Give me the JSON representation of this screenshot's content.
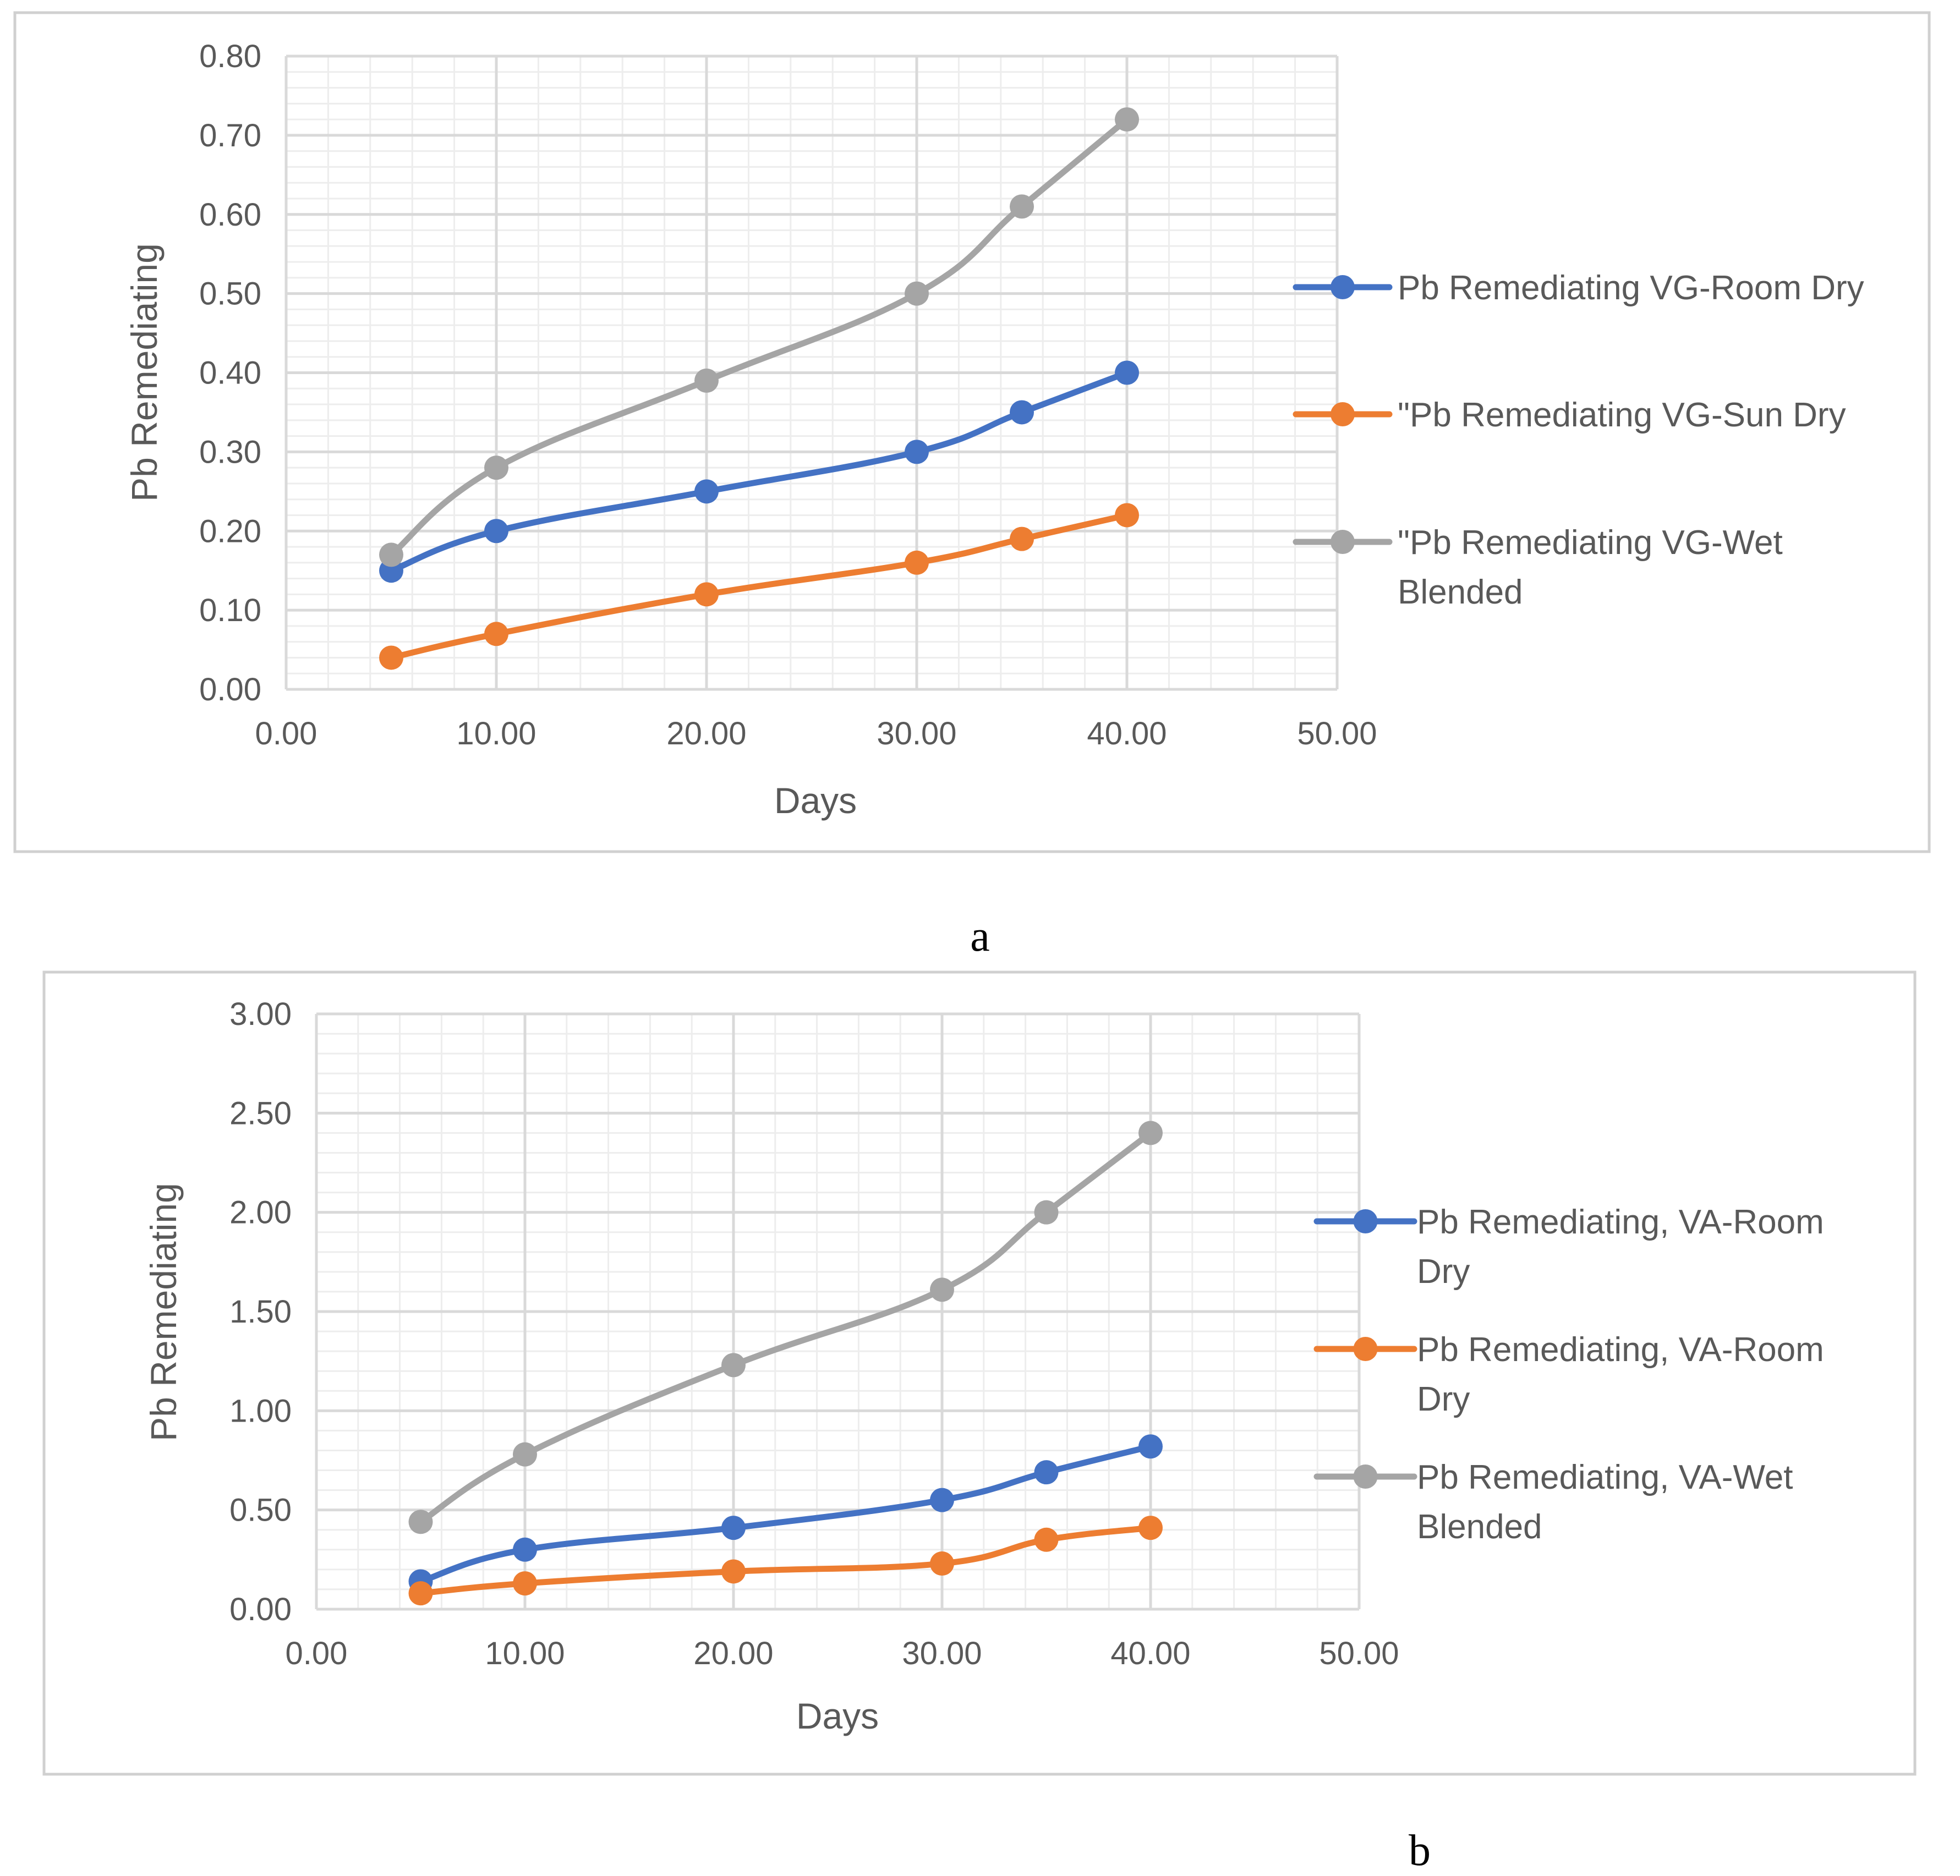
{
  "colors": {
    "blue": "#4472C4",
    "orange": "#ED7D31",
    "gray": "#A5A5A5",
    "grid_major": "#D9D9D9",
    "grid_minor": "#EDEDED",
    "text": "#595959",
    "frame": "#D0D0D0"
  },
  "chart_data": [
    {
      "type": "line",
      "panel_label": "a",
      "xlabel": "Days",
      "ylabel": "Pb Remediating",
      "xlim": [
        0,
        50
      ],
      "ylim": [
        0,
        0.8
      ],
      "x_ticks": [
        "0.00",
        "10.00",
        "20.00",
        "30.00",
        "40.00",
        "50.00"
      ],
      "y_ticks": [
        "0.00",
        "0.10",
        "0.20",
        "0.30",
        "0.40",
        "0.50",
        "0.60",
        "0.70",
        "0.80"
      ],
      "x_tick_values": [
        0,
        10,
        20,
        30,
        40,
        50
      ],
      "y_tick_values": [
        0,
        0.1,
        0.2,
        0.3,
        0.4,
        0.5,
        0.6,
        0.7,
        0.8
      ],
      "x_minor_step": 2,
      "y_minor_step": 0.02,
      "grid": true,
      "legend_position": "right",
      "x": [
        5,
        10,
        20,
        30,
        35,
        40
      ],
      "series": [
        {
          "name": "Pb Remediating VG-Room Dry",
          "legend_lines": [
            "Pb Remediating VG-Room Dry"
          ],
          "color": "#4472C4",
          "values": [
            0.15,
            0.2,
            0.25,
            0.3,
            0.35,
            0.4
          ]
        },
        {
          "name": "\"Pb Remediating VG-Sun Dry",
          "legend_lines": [
            "\"Pb Remediating VG-Sun Dry"
          ],
          "color": "#ED7D31",
          "values": [
            0.04,
            0.07,
            0.12,
            0.16,
            0.19,
            0.22
          ]
        },
        {
          "name": "\"Pb Remediating VG-Wet Blended",
          "legend_lines": [
            "\"Pb Remediating VG-Wet",
            "Blended"
          ],
          "color": "#A5A5A5",
          "values": [
            0.17,
            0.28,
            0.39,
            0.5,
            0.61,
            0.72
          ]
        }
      ]
    },
    {
      "type": "line",
      "panel_label": "b",
      "xlabel": "Days",
      "ylabel": "Pb Remediating",
      "xlim": [
        0,
        50
      ],
      "ylim": [
        0,
        3
      ],
      "x_ticks": [
        "0.00",
        "10.00",
        "20.00",
        "30.00",
        "40.00",
        "50.00"
      ],
      "y_ticks": [
        "0.00",
        "0.50",
        "1.00",
        "1.50",
        "2.00",
        "2.50",
        "3.00"
      ],
      "x_tick_values": [
        0,
        10,
        20,
        30,
        40,
        50
      ],
      "y_tick_values": [
        0,
        0.5,
        1,
        1.5,
        2,
        2.5,
        3
      ],
      "x_minor_step": 2,
      "y_minor_step": 0.1,
      "grid": true,
      "legend_position": "right",
      "x": [
        5,
        10,
        20,
        30,
        35,
        40
      ],
      "series": [
        {
          "name": "Pb Remediating, VA-Room Dry",
          "legend_lines": [
            "Pb Remediating, VA-Room",
            "Dry"
          ],
          "color": "#4472C4",
          "values": [
            0.14,
            0.3,
            0.41,
            0.55,
            0.69,
            0.82
          ]
        },
        {
          "name": "Pb Remediating, VA-Room Dry",
          "legend_lines": [
            "Pb Remediating, VA-Room",
            "Dry"
          ],
          "color": "#ED7D31",
          "values": [
            0.08,
            0.13,
            0.19,
            0.23,
            0.35,
            0.41
          ]
        },
        {
          "name": "Pb Remediating, VA-Wet Blended",
          "legend_lines": [
            "Pb Remediating, VA-Wet",
            "Blended"
          ],
          "color": "#A5A5A5",
          "values": [
            0.44,
            0.78,
            1.23,
            1.61,
            2.0,
            2.4
          ]
        }
      ]
    }
  ]
}
